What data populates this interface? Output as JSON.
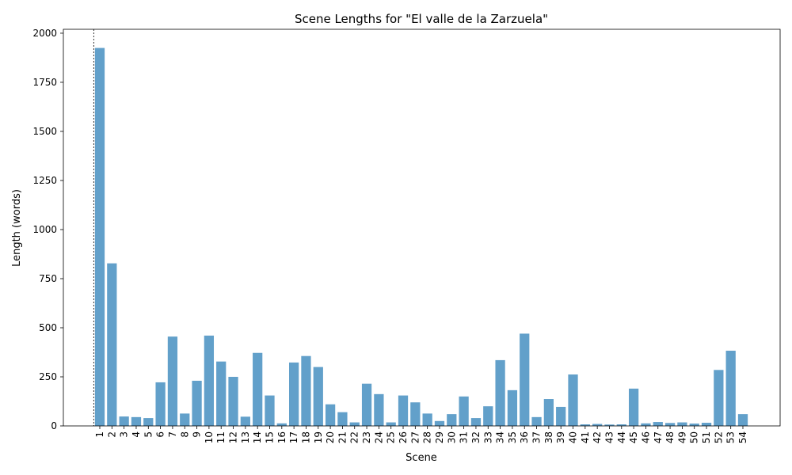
{
  "chart_data": {
    "type": "bar",
    "title": "Scene Lengths for \"El valle de la Zarzuela\"",
    "xlabel": "Scene",
    "ylabel": "Length (words)",
    "ylim": [
      0,
      2020
    ],
    "yticks": [
      0,
      250,
      500,
      750,
      1000,
      1250,
      1500,
      1750,
      2000
    ],
    "grid": false,
    "legend": "none",
    "bar_color": "#1f77b4",
    "categories": [
      "1",
      "2",
      "3",
      "4",
      "5",
      "6",
      "7",
      "8",
      "9",
      "10",
      "11",
      "12",
      "13",
      "14",
      "15",
      "16",
      "17",
      "18",
      "19",
      "20",
      "21",
      "22",
      "23",
      "24",
      "25",
      "26",
      "27",
      "28",
      "29",
      "30",
      "31",
      "32",
      "33",
      "34",
      "35",
      "36",
      "37",
      "38",
      "39",
      "40",
      "41",
      "42",
      "43",
      "44",
      "45",
      "46",
      "47",
      "48",
      "49",
      "50",
      "51",
      "52",
      "53",
      "54"
    ],
    "values": [
      1925,
      828,
      48,
      45,
      40,
      222,
      455,
      63,
      230,
      460,
      328,
      250,
      47,
      372,
      155,
      13,
      323,
      356,
      300,
      110,
      70,
      18,
      215,
      162,
      18,
      155,
      120,
      63,
      25,
      60,
      150,
      40,
      100,
      335,
      182,
      470,
      45,
      137,
      97,
      262,
      8,
      10,
      7,
      8,
      190,
      13,
      20,
      15,
      18,
      12,
      16,
      285,
      383,
      60
    ],
    "reference_line": {
      "x": "1",
      "style": "dashed"
    }
  }
}
